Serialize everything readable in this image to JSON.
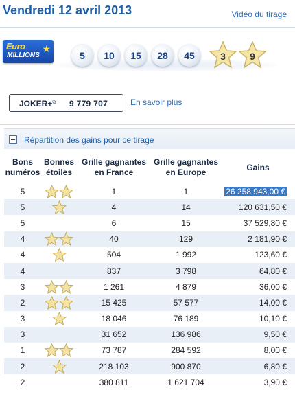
{
  "header": {
    "date": "Vendredi 12 avril 2013",
    "video_link": "Vidéo du tirage"
  },
  "logo": {
    "line1": "Euro",
    "line2": "MILLIONS"
  },
  "draw": {
    "balls": [
      "5",
      "10",
      "15",
      "28",
      "45"
    ],
    "stars": [
      "3",
      "9"
    ]
  },
  "joker": {
    "label": "JOKER+",
    "registered": "®",
    "number": "9 779 707",
    "more_link": "En savoir plus"
  },
  "repartition": {
    "title": "Répartition des gains pour ce tirage",
    "columns": {
      "bons_1": "Bons",
      "bons_2": "numéros",
      "etoiles_1": "Bonnes",
      "etoiles_2": "étoiles",
      "france_1": "Grille gagnantes",
      "france_2": "en France",
      "europe_1": "Grille gagnantes",
      "europe_2": "en Europe",
      "gains": "Gains"
    },
    "rows": [
      {
        "numbers": "5",
        "stars": 2,
        "france": "1",
        "europe": "1",
        "gain": "26 258 943,00 €",
        "highlighted": true
      },
      {
        "numbers": "5",
        "stars": 1,
        "france": "4",
        "europe": "14",
        "gain": "120 631,50 €"
      },
      {
        "numbers": "5",
        "stars": 0,
        "france": "6",
        "europe": "15",
        "gain": "37 529,80 €"
      },
      {
        "numbers": "4",
        "stars": 2,
        "france": "40",
        "europe": "129",
        "gain": "2 181,90 €"
      },
      {
        "numbers": "4",
        "stars": 1,
        "france": "504",
        "europe": "1 992",
        "gain": "123,60 €"
      },
      {
        "numbers": "4",
        "stars": 0,
        "france": "837",
        "europe": "3 798",
        "gain": "64,80 €"
      },
      {
        "numbers": "3",
        "stars": 2,
        "france": "1 261",
        "europe": "4 879",
        "gain": "36,00 €"
      },
      {
        "numbers": "2",
        "stars": 2,
        "france": "15 425",
        "europe": "57 577",
        "gain": "14,00 €"
      },
      {
        "numbers": "3",
        "stars": 1,
        "france": "18 046",
        "europe": "76 189",
        "gain": "10,10 €"
      },
      {
        "numbers": "3",
        "stars": 0,
        "france": "31 652",
        "europe": "136 986",
        "gain": "9,50 €"
      },
      {
        "numbers": "1",
        "stars": 2,
        "france": "73 787",
        "europe": "284 592",
        "gain": "8,00 €"
      },
      {
        "numbers": "2",
        "stars": 1,
        "france": "218 103",
        "europe": "900 870",
        "gain": "6,80 €"
      },
      {
        "numbers": "2",
        "stars": 0,
        "france": "380 811",
        "europe": "1 621 704",
        "gain": "3,90 €"
      }
    ]
  },
  "colors": {
    "accent": "#1d5fa8",
    "row_alt": "#e9eff6",
    "highlight": "#3b78c4",
    "star": "#f3e3a2"
  }
}
